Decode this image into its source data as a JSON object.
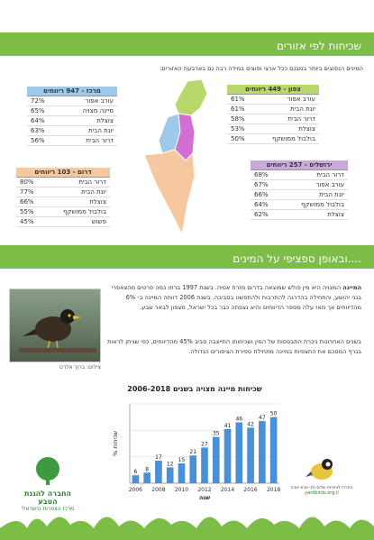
{
  "sections": {
    "regions_title": "שכיחות לפי אזורים",
    "species_title": "ובאופן ספציפי על המינים...."
  },
  "intro": "המינים הנפוצים ביותר במבנם ככל ארצי  ופוצים  במידה רבה גם בארבעת האזורים:",
  "regions": [
    {
      "title": "מרכז - 947 ריווחים",
      "header_color": "#9ec9e8",
      "rows": [
        {
          "name": "עורב אפור",
          "pct": "72%"
        },
        {
          "name": "מיינה מצויה",
          "pct": "65%"
        },
        {
          "name": "צוצלת",
          "pct": "64%"
        },
        {
          "name": "יונת הבית",
          "pct": "63%"
        },
        {
          "name": "דרור הבית",
          "pct": "56%"
        }
      ]
    },
    {
      "title": "צפון - 449 ריווחים",
      "header_color": "#b8d86b",
      "rows": [
        {
          "name": "עורב אפור",
          "pct": "61%"
        },
        {
          "name": "יונת הבית",
          "pct": "61%"
        },
        {
          "name": "דרור הבית",
          "pct": "58%"
        },
        {
          "name": "צוצלת",
          "pct": "53%"
        },
        {
          "name": "בולבול ממושקף",
          "pct": "50%"
        }
      ]
    },
    {
      "title": "ירושלים - 257 ריווחים",
      "header_color": "#c9a9d9",
      "rows": [
        {
          "name": "דרור הבית",
          "pct": "68%"
        },
        {
          "name": "עורב אפור",
          "pct": "67%"
        },
        {
          "name": "יונת הבית",
          "pct": "66%"
        },
        {
          "name": "בולבול ממושקף",
          "pct": "64%"
        },
        {
          "name": "צוצלת",
          "pct": "62%"
        }
      ]
    },
    {
      "title": "דרום - 103 ריווחים",
      "header_color": "#f5c8a0",
      "rows": [
        {
          "name": "דרור הבית",
          "pct": "80%"
        },
        {
          "name": "יונת הבית",
          "pct": "77%"
        },
        {
          "name": "צוצלת",
          "pct": "66%"
        },
        {
          "name": "בולבול ממושקף",
          "pct": "55%"
        },
        {
          "name": "פשוש",
          "pct": "45%"
        }
      ]
    }
  ],
  "photo_credit": "צילום: ברוך אלרט",
  "paragraph1_lead": "המיינה",
  "paragraph1": " המצויה היא מין פולש שמוצאה בדרום מזרח אסיה. בשנת 1997 ברחו כמה פרטים מהצאפרי בגני יהושע, והתחילה בהדרגה להתרבות ולהתפשט בסביבה. בשנת 2006 דווחה המיינה ב- 6% מהדיווחים אך מאז עלה מספר הדיווחים והיא נצפתה כבר בכל ישראל, מצפון לבאר שבע.",
  "paragraph2": "בשנים האחרונות ניכרת התבססות של המין ושכיחותו התייצבה סביב 45% מהדיווחים, כפי שניתן לראות בגרף המסכם את התצפיות במיינה מתחילת ספירת הציפורים הגדולה.",
  "chart_data": {
    "type": "bar",
    "title": "שכיחות מיינה מצויה בשנים 2006-2018",
    "xlabel": "שנה",
    "ylabel": "% שכיחות",
    "categories": [
      "2006",
      "2007",
      "2008",
      "2009",
      "2010",
      "2011",
      "2012",
      "2013",
      "2014",
      "2015",
      "2016",
      "2017",
      "2018"
    ],
    "values": [
      6,
      8,
      17,
      12,
      15,
      21,
      27,
      35,
      41,
      46,
      42,
      47,
      50
    ],
    "x_tick_labels": [
      "2006",
      "2008",
      "2010",
      "2012",
      "2014",
      "2016",
      "2018"
    ],
    "ylim": [
      0,
      60
    ],
    "bar_color": "#4a90d9",
    "grid": true
  },
  "logos": {
    "left_line1": "החברה להגנת הטבע",
    "left_line2": "מרכז הצפרות הישראלי",
    "right_line1": "המרכז לצפרות שלום ולגי סבא יטבה",
    "right_line2": "yardbirds.org.il"
  }
}
